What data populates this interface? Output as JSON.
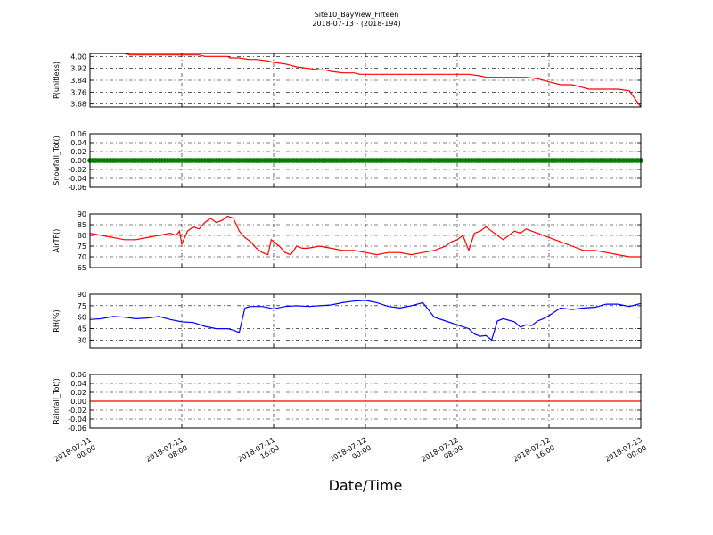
{
  "title": "Site10_BayView_Fifteen",
  "subtitle": "2018-07-13 - (2018-194)",
  "xlabel": "Date/Time",
  "xticks": [
    {
      "l1": "2018-07-11",
      "l2": "00:00",
      "h": 0
    },
    {
      "l1": "2018-07-11",
      "l2": "08:00",
      "h": 8
    },
    {
      "l1": "2018-07-11",
      "l2": "16:00",
      "h": 16
    },
    {
      "l1": "2018-07-12",
      "l2": "00:00",
      "h": 24
    },
    {
      "l1": "2018-07-12",
      "l2": "08:00",
      "h": 32
    },
    {
      "l1": "2018-07-12",
      "l2": "16:00",
      "h": 40
    },
    {
      "l1": "2018-07-13",
      "l2": "00:00",
      "h": 48
    }
  ],
  "colors": {
    "pressure": "#ff0000",
    "snowfall": "#008000",
    "airtemp": "#ff0000",
    "rh": "#0000ff",
    "rainfall": "#ff0000"
  },
  "chart_data": [
    {
      "type": "line",
      "name": "pressure",
      "ylabel": "P(unitless)",
      "ylim": [
        3.66,
        4.02
      ],
      "yticks": [
        4.0,
        3.92,
        3.84,
        3.76,
        3.68
      ],
      "decimals": 2,
      "grid": true,
      "xlim": [
        0,
        48
      ],
      "x": [
        0,
        3,
        3.5,
        4,
        8,
        9.5,
        10,
        12,
        12.2,
        13,
        13.8,
        14.5,
        15.5,
        16,
        17,
        18,
        19,
        20,
        20.5,
        21,
        22,
        23,
        23.5,
        24,
        30,
        31,
        33,
        34,
        34.5,
        35,
        36,
        37,
        38,
        39,
        39.5,
        40,
        40.5,
        41,
        42,
        43,
        43.5,
        44,
        45,
        46,
        47,
        48
      ],
      "y": [
        4.02,
        4.02,
        4.01,
        4.01,
        4.01,
        4.01,
        4.0,
        4.0,
        3.99,
        3.99,
        3.98,
        3.98,
        3.97,
        3.96,
        3.95,
        3.93,
        3.92,
        3.91,
        3.91,
        3.9,
        3.89,
        3.89,
        3.88,
        3.88,
        3.88,
        3.88,
        3.88,
        3.87,
        3.86,
        3.86,
        3.86,
        3.86,
        3.86,
        3.85,
        3.84,
        3.83,
        3.82,
        3.81,
        3.81,
        3.79,
        3.78,
        3.78,
        3.78,
        3.78,
        3.77,
        3.66
      ]
    },
    {
      "type": "line",
      "name": "snowfall",
      "ylabel": "Snowfall_Tot()",
      "ylim": [
        -0.06,
        0.06
      ],
      "yticks": [
        0.06,
        0.04,
        0.02,
        0.0,
        -0.02,
        -0.04,
        -0.06
      ],
      "decimals": 2,
      "grid": true,
      "xlim": [
        0,
        48
      ],
      "markers": true,
      "x": [
        0,
        48
      ],
      "y": [
        0,
        0
      ]
    },
    {
      "type": "line",
      "name": "airtemp",
      "ylabel": "AirTF()",
      "ylim": [
        65,
        90
      ],
      "yticks": [
        90,
        85,
        80,
        75,
        70,
        65
      ],
      "decimals": 0,
      "grid": true,
      "xlim": [
        0,
        48
      ],
      "x": [
        0,
        1,
        2,
        3,
        4,
        5,
        6,
        7,
        7.5,
        7.8,
        8,
        8.5,
        9,
        9.5,
        10,
        10.5,
        11,
        11.5,
        12,
        12.5,
        13,
        13.5,
        14,
        14.5,
        15,
        15.5,
        15.8,
        16,
        16.5,
        17,
        17.5,
        18,
        18.5,
        19,
        20,
        21,
        22,
        23,
        24,
        25,
        26,
        27,
        28,
        29,
        30,
        31,
        31.5,
        32,
        32.5,
        33,
        33.5,
        34,
        34.5,
        35,
        35.5,
        36,
        36.5,
        37,
        37.5,
        38,
        38.5,
        39,
        40,
        41,
        42,
        43,
        44,
        45,
        46,
        47,
        48
      ],
      "y": [
        81,
        80,
        79,
        78,
        78,
        79,
        80,
        81,
        80,
        82,
        76,
        82,
        84,
        83,
        86,
        88,
        86,
        87,
        89,
        88,
        82,
        79,
        77,
        74,
        72,
        71,
        78,
        77,
        75,
        72,
        71,
        75,
        74,
        74,
        75,
        74,
        73,
        73,
        72,
        71,
        72,
        72,
        71,
        72,
        73,
        75,
        77,
        78,
        80,
        73,
        81,
        82,
        84,
        82,
        80,
        78,
        80,
        82,
        81,
        83,
        82,
        81,
        79,
        77,
        75,
        73,
        73,
        72,
        71,
        70,
        70
      ]
    },
    {
      "type": "line",
      "name": "rh",
      "ylabel": "RH(%)",
      "ylim": [
        20,
        90
      ],
      "yticks": [
        90,
        75,
        60,
        45,
        30
      ],
      "decimals": 0,
      "grid": true,
      "xlim": [
        0,
        48
      ],
      "x": [
        0,
        1,
        2,
        3,
        4,
        5,
        6,
        7,
        8,
        9,
        10,
        11,
        12,
        12.5,
        13,
        13.5,
        14,
        15,
        16,
        17,
        18,
        19,
        20,
        21,
        22,
        23,
        24,
        25,
        26,
        27,
        28,
        29,
        30,
        31,
        32,
        33,
        33.5,
        34,
        34.5,
        35,
        35.5,
        36,
        37,
        37.5,
        38,
        38.5,
        39,
        39.5,
        40,
        41,
        42,
        43,
        44,
        45,
        46,
        47,
        48
      ],
      "y": [
        57,
        58,
        61,
        60,
        58,
        59,
        61,
        57,
        54,
        53,
        48,
        45,
        45,
        43,
        40,
        72,
        74,
        74,
        71,
        74,
        75,
        74,
        75,
        76,
        79,
        81,
        82,
        79,
        74,
        72,
        75,
        79,
        60,
        55,
        50,
        45,
        38,
        35,
        36,
        30,
        55,
        58,
        54,
        47,
        50,
        49,
        55,
        58,
        62,
        72,
        70,
        72,
        73,
        77,
        77,
        74,
        78
      ]
    },
    {
      "type": "line",
      "name": "rainfall",
      "ylabel": "Rainfall_Tot()",
      "ylim": [
        -0.06,
        0.06
      ],
      "yticks": [
        0.06,
        0.04,
        0.02,
        0.0,
        -0.02,
        -0.04,
        -0.06
      ],
      "decimals": 2,
      "grid": true,
      "xlim": [
        0,
        48
      ],
      "x": [
        0,
        48
      ],
      "y": [
        0,
        0
      ]
    }
  ]
}
